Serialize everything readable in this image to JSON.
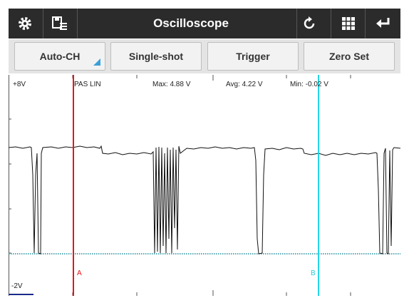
{
  "toolbar": {
    "title": "Oscilloscope"
  },
  "buttons": [
    "Auto-CH",
    "Single-shot",
    "Trigger",
    "Zero Set"
  ],
  "scope": {
    "top_label": "+8V",
    "bottom_label": "-2V",
    "channel": "PAS LIN",
    "stats": [
      "Max: 4.88 V",
      "Avg: 4.22 V",
      "Min: -0.02 V"
    ],
    "cursors": [
      "A",
      "B"
    ]
  }
}
